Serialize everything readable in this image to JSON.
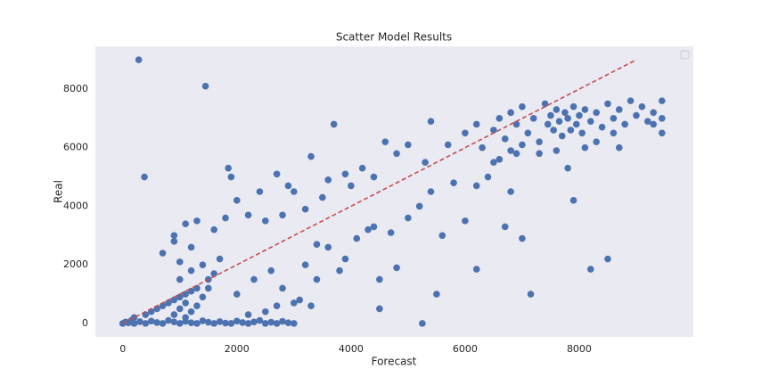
{
  "chart_data": {
    "type": "scatter",
    "title": "Scatter Model Results",
    "x_label": "Forecast",
    "y_label": "Real",
    "xlim": [
      -480,
      10000
    ],
    "ylim": [
      -460,
      9460
    ],
    "xticks": [
      0,
      2000,
      4000,
      6000,
      8000
    ],
    "yticks": [
      0,
      2000,
      4000,
      6000,
      8000
    ],
    "grid": false,
    "reference_line": {
      "x": [
        0,
        9000
      ],
      "y": [
        0,
        9000
      ],
      "color": "#c44e52"
    },
    "series": [
      {
        "color": "#4c72b0",
        "x": [
          0,
          50,
          100,
          150,
          200,
          300,
          400,
          500,
          600,
          700,
          800,
          900,
          1000,
          1100,
          1200,
          1300,
          1400,
          1500,
          1600,
          1700,
          1800,
          1900,
          2000,
          2100,
          2200,
          2300,
          2400,
          2500,
          2600,
          2700,
          2800,
          2900,
          3000,
          200,
          400,
          500,
          600,
          700,
          800,
          900,
          1000,
          1100,
          1200,
          1300,
          900,
          1000,
          1100,
          1200,
          1300,
          1400,
          1500,
          1100,
          1000,
          1200,
          1400,
          1500,
          1600,
          900,
          1100,
          1300,
          1600,
          1800,
          1900,
          1850,
          2000,
          2200,
          2400,
          2700,
          2900,
          3000,
          3300,
          3600,
          3900,
          4200,
          4600,
          4800,
          5000,
          700,
          900,
          1000,
          1200,
          1700,
          2500,
          2800,
          3200,
          3500,
          4000,
          4400,
          5300,
          5400,
          5700,
          6000,
          6200,
          2000,
          2300,
          2600,
          2800,
          3000,
          3200,
          3400,
          3600,
          3800,
          3900,
          4100,
          4300,
          4500,
          4800,
          5000,
          5200,
          5400,
          5600,
          5800,
          6000,
          6200,
          6400,
          6600,
          6700,
          6800,
          6900,
          7000,
          4400,
          4700,
          3400,
          3300,
          3100,
          2700,
          2500,
          2200,
          6500,
          6600,
          6700,
          6800,
          6900,
          7000,
          7100,
          7200,
          7300,
          7400,
          7450,
          7500,
          7550,
          7600,
          7650,
          7700,
          7750,
          7800,
          7850,
          7900,
          7950,
          8000,
          8050,
          8100,
          8200,
          8300,
          8400,
          8500,
          8600,
          8700,
          8800,
          8900,
          9000,
          9100,
          9200,
          9300,
          9450,
          9450,
          9450,
          7000,
          7300,
          7600,
          7800,
          7900,
          8100,
          8300,
          8600,
          8700,
          6500,
          6300,
          6800,
          9300,
          280,
          1450,
          380,
          3700,
          5250,
          7150,
          8200,
          8500,
          6200,
          5500,
          4500
        ],
        "values": [
          0,
          50,
          20,
          100,
          0,
          60,
          0,
          80,
          30,
          0,
          100,
          50,
          0,
          70,
          20,
          0,
          90,
          40,
          0,
          60,
          10,
          0,
          80,
          30,
          0,
          50,
          100,
          0,
          40,
          0,
          70,
          20,
          0,
          200,
          300,
          400,
          500,
          600,
          700,
          800,
          900,
          1000,
          1100,
          1200,
          300,
          500,
          700,
          400,
          600,
          900,
          1200,
          200,
          1500,
          1800,
          2000,
          1500,
          1700,
          3000,
          3400,
          3500,
          3200,
          3600,
          5000,
          5300,
          4200,
          3700,
          4500,
          5100,
          4700,
          4500,
          5700,
          4900,
          5100,
          5300,
          6200,
          5800,
          6100,
          2400,
          2800,
          2100,
          2600,
          2200,
          3500,
          3700,
          3900,
          4300,
          4700,
          5000,
          5500,
          6900,
          6100,
          6500,
          6800,
          1000,
          1500,
          1800,
          1200,
          700,
          2000,
          1500,
          2600,
          1800,
          2200,
          2900,
          3200,
          1500,
          1900,
          3600,
          4000,
          4500,
          3000,
          4800,
          3500,
          4700,
          5000,
          5600,
          3300,
          4500,
          5800,
          2900,
          3300,
          3100,
          2700,
          600,
          800,
          600,
          400,
          300,
          6600,
          7000,
          6300,
          7200,
          6800,
          7400,
          6500,
          7000,
          6200,
          7500,
          6800,
          7100,
          6600,
          7300,
          6900,
          6400,
          7200,
          7000,
          6600,
          7400,
          6800,
          7100,
          6500,
          7300,
          6900,
          7200,
          6700,
          7500,
          7000,
          7300,
          6800,
          7600,
          7100,
          7400,
          6900,
          7200,
          7600,
          6500,
          7000,
          6100,
          5800,
          5900,
          5300,
          4200,
          6000,
          6200,
          6500,
          6000,
          5500,
          6000,
          5900,
          6800,
          9000,
          8100,
          5000,
          6800,
          0,
          1000,
          1850,
          2200,
          1850,
          1000,
          500
        ]
      }
    ]
  }
}
